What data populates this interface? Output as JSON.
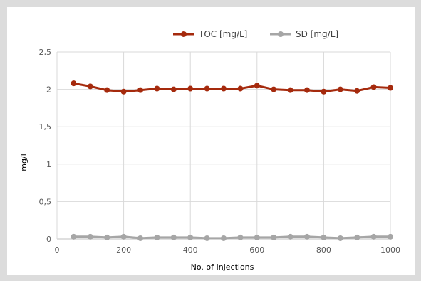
{
  "chart_data": {
    "type": "line",
    "title": "",
    "xlabel": "No. of Injections",
    "ylabel": "mg/L",
    "xlim": [
      0,
      1000
    ],
    "ylim": [
      0,
      2.5
    ],
    "x_ticks": [
      0,
      200,
      400,
      600,
      800,
      1000
    ],
    "y_ticks": [
      0,
      0.5,
      1,
      1.5,
      2,
      2.5
    ],
    "x_tick_labels": [
      "0",
      "200",
      "400",
      "600",
      "800",
      "1000"
    ],
    "y_tick_labels": [
      "0",
      "0,5",
      "1",
      "1,5",
      "2",
      "2,5"
    ],
    "grid": "vertical and horizontal",
    "legend_position": "top",
    "x": [
      50,
      100,
      150,
      200,
      250,
      300,
      350,
      400,
      450,
      500,
      550,
      600,
      650,
      700,
      750,
      800,
      850,
      900,
      950,
      1000
    ],
    "series": [
      {
        "name": "TOC [mg/L]",
        "color": "#a52a0d",
        "values": [
          2.08,
          2.04,
          1.99,
          1.97,
          1.99,
          2.01,
          2.0,
          2.01,
          2.01,
          2.01,
          2.01,
          2.05,
          2.0,
          1.99,
          1.99,
          1.97,
          2.0,
          1.98,
          2.03,
          2.02
        ]
      },
      {
        "name": "SD [mg/L]",
        "color": "#a6a6a6",
        "values": [
          0.03,
          0.03,
          0.02,
          0.03,
          0.01,
          0.02,
          0.02,
          0.02,
          0.01,
          0.01,
          0.02,
          0.02,
          0.02,
          0.03,
          0.03,
          0.02,
          0.01,
          0.02,
          0.03,
          0.03
        ]
      }
    ]
  }
}
